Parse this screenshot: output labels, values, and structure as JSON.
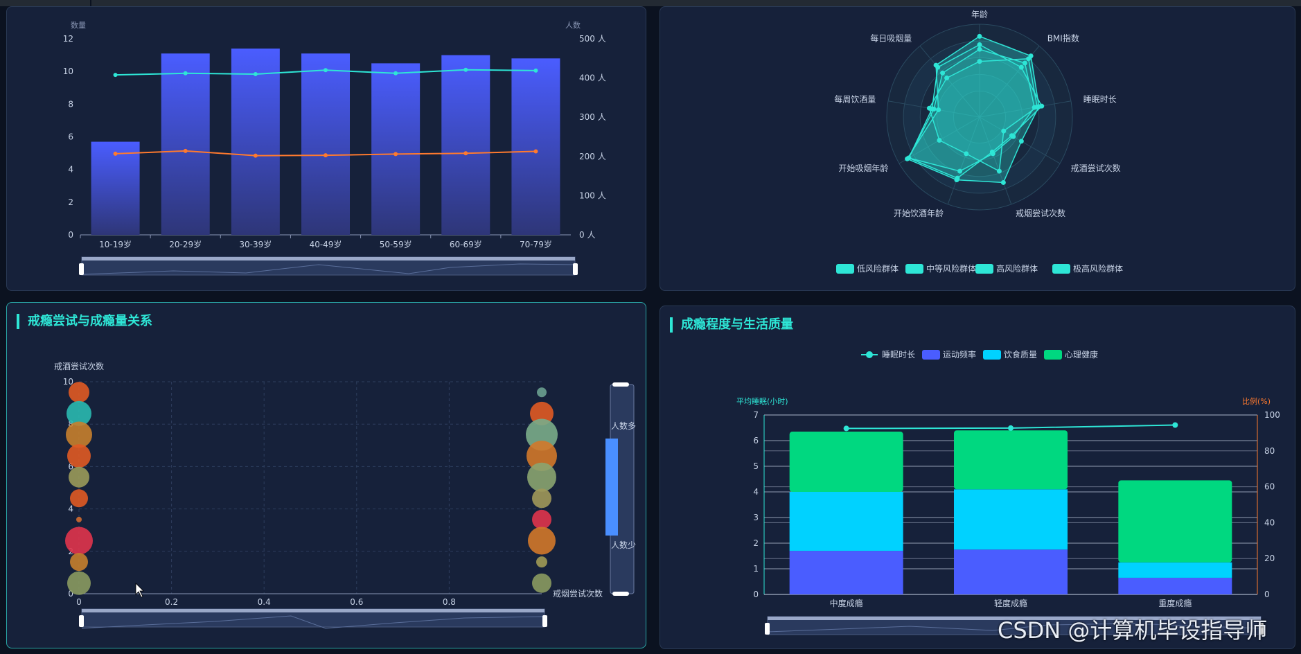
{
  "colors": {
    "bar": "#4a5dff",
    "cyan": "#2ee6d6",
    "orange": "#ff7a2e",
    "green": "#00d880",
    "sky": "#00d2ff",
    "radar": "#2ee6d6"
  },
  "panel1": {
    "y_left_label": "数量",
    "y_right_label": "人数",
    "y_left_ticks": [
      "0",
      "2",
      "4",
      "6",
      "8",
      "10",
      "12"
    ],
    "y_right_ticks": [
      "0 人",
      "100 人",
      "200 人",
      "300 人",
      "400 人",
      "500 人"
    ]
  },
  "panel2": {
    "legend": [
      "低风险群体",
      "中等风险群体",
      "高风险群体",
      "极高风险群体"
    ]
  },
  "panel3": {
    "title": "戒瘾尝试与成瘾量关系",
    "y_label": "戒酒尝试次数",
    "x_label": "戒烟尝试次数",
    "y_ticks": [
      "0",
      "2",
      "4",
      "6",
      "8",
      "10"
    ],
    "x_ticks": [
      "0",
      "0.2",
      "0.4",
      "0.6",
      "0.8"
    ],
    "visual_map": {
      "high": "人数多",
      "low": "人数少"
    }
  },
  "panel4": {
    "title": "成瘾程度与生活质量",
    "legend": [
      "睡眠时长",
      "运动频率",
      "饮食质量",
      "心理健康"
    ],
    "y_left_label": "平均睡眠(小时)",
    "y_right_label": "比例(%)",
    "y_left_ticks": [
      "0",
      "1",
      "2",
      "3",
      "4",
      "5",
      "6",
      "7"
    ],
    "y_right_ticks": [
      "0",
      "20",
      "40",
      "60",
      "80",
      "100"
    ]
  },
  "watermark": "CSDN @计算机毕设指导师",
  "chart_data": [
    {
      "type": "bar",
      "categories": [
        "10-19岁",
        "20-29岁",
        "30-39岁",
        "40-49岁",
        "50-59岁",
        "60-69岁",
        "70-79岁"
      ],
      "series": [
        {
          "type": "bar",
          "axis": "left",
          "values": [
            5.7,
            11.1,
            11.4,
            11.1,
            10.5,
            11.0,
            10.8
          ]
        },
        {
          "type": "line",
          "axis": "right",
          "color": "cyan",
          "values": [
            408,
            412,
            410,
            420,
            412,
            421,
            419
          ]
        },
        {
          "type": "line",
          "axis": "right",
          "color": "orange",
          "values": [
            207,
            214,
            202,
            203,
            206,
            208,
            213
          ]
        }
      ],
      "ylim_left": [
        0,
        12
      ],
      "ylim_right": [
        0,
        500
      ]
    },
    {
      "type": "radar",
      "indicators": [
        "年龄",
        "BMI指数",
        "睡眠时长",
        "戒酒尝试次数",
        "戒烟尝试次数",
        "开始饮酒年龄",
        "开始吸烟年龄",
        "每周饮酒量",
        "每日吸烟量"
      ],
      "series": [
        {
          "name": "低风险群体",
          "values": [
            0.87,
            0.86,
            0.65,
            0.52,
            0.75,
            0.72,
            0.9,
            0.45,
            0.73
          ]
        },
        {
          "name": "中等风险群体",
          "values": [
            0.73,
            0.76,
            0.6,
            0.42,
            0.42,
            0.62,
            0.88,
            0.5,
            0.62
          ]
        },
        {
          "name": "高风险群体",
          "values": [
            0.6,
            0.82,
            0.63,
            0.3,
            0.62,
            0.42,
            0.5,
            0.55,
            0.55
          ]
        },
        {
          "name": "极高风险群体",
          "values": [
            0.78,
            0.7,
            0.68,
            0.4,
            0.4,
            0.7,
            0.88,
            0.52,
            0.7
          ]
        }
      ]
    },
    {
      "type": "scatter",
      "points": [
        {
          "x": 0,
          "y": 9,
          "size": 30,
          "color": "#e05a23"
        },
        {
          "x": 0,
          "y": 8,
          "size": 36,
          "color": "#2ab9b0"
        },
        {
          "x": 0,
          "y": 7,
          "size": 38,
          "color": "#c77f2e"
        },
        {
          "x": 0,
          "y": 6,
          "size": 34,
          "color": "#e05a23"
        },
        {
          "x": 0,
          "y": 5,
          "size": 30,
          "color": "#9a9a5a"
        },
        {
          "x": 0,
          "y": 4,
          "size": 26,
          "color": "#e05a23"
        },
        {
          "x": 0,
          "y": 3,
          "size": 8,
          "color": "#d06a30"
        },
        {
          "x": 0,
          "y": 2,
          "size": 40,
          "color": "#e0344d"
        },
        {
          "x": 0,
          "y": 1,
          "size": 26,
          "color": "#c77f2e"
        },
        {
          "x": 0,
          "y": 0,
          "size": 34,
          "color": "#8a9a60"
        },
        {
          "x": 1,
          "y": 9,
          "size": 14,
          "color": "#6aa090"
        },
        {
          "x": 1,
          "y": 8,
          "size": 34,
          "color": "#e05a23"
        },
        {
          "x": 1,
          "y": 7,
          "size": 46,
          "color": "#7aac8a"
        },
        {
          "x": 1,
          "y": 6,
          "size": 44,
          "color": "#d2782a"
        },
        {
          "x": 1,
          "y": 5,
          "size": 42,
          "color": "#8aa470"
        },
        {
          "x": 1,
          "y": 4,
          "size": 28,
          "color": "#a0985a"
        },
        {
          "x": 1,
          "y": 3,
          "size": 28,
          "color": "#e0344d"
        },
        {
          "x": 1,
          "y": 2,
          "size": 40,
          "color": "#d2782a"
        },
        {
          "x": 1,
          "y": 1,
          "size": 16,
          "color": "#a09a55"
        },
        {
          "x": 1,
          "y": 0,
          "size": 28,
          "color": "#8a9a60"
        }
      ],
      "xlim": [
        0,
        1
      ],
      "ylim": [
        0,
        10
      ]
    },
    {
      "type": "bar",
      "categories": [
        "中度成瘾",
        "轻度成瘾",
        "重度成瘾"
      ],
      "series": [
        {
          "name": "运动频率",
          "axis": "left",
          "stack": "s",
          "values": [
            1.7,
            1.75,
            0.65
          ]
        },
        {
          "name": "饮食质量",
          "axis": "left",
          "stack": "s",
          "values": [
            2.3,
            2.35,
            0.6
          ]
        },
        {
          "name": "心理健康",
          "axis": "left",
          "stack": "s",
          "values": [
            2.35,
            2.3,
            3.2
          ]
        },
        {
          "name": "睡眠时长",
          "type": "line",
          "axis": "right",
          "values": [
            92.5,
            92.7,
            94.4
          ]
        }
      ],
      "ylim_left": [
        0,
        7
      ],
      "ylim_right": [
        0,
        100
      ]
    }
  ]
}
